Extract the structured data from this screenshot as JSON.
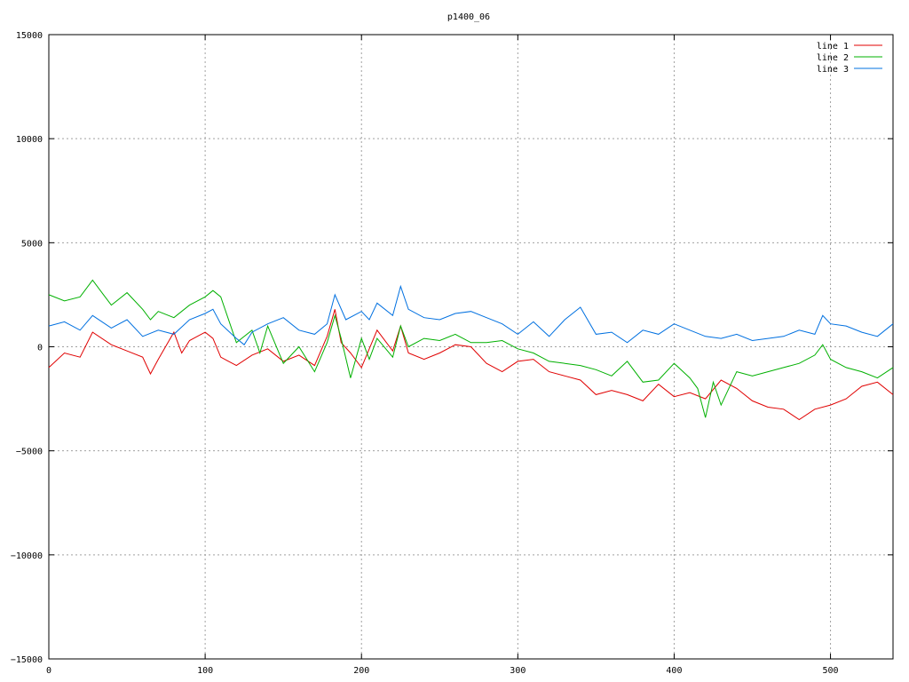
{
  "chart_data": {
    "type": "line",
    "title": "p1400_06",
    "xlabel": "",
    "ylabel": "",
    "xlim": [
      0,
      540
    ],
    "ylim": [
      -15000,
      15000
    ],
    "x_ticks": [
      0,
      100,
      200,
      300,
      400,
      500
    ],
    "y_ticks": [
      -15000,
      -10000,
      -5000,
      0,
      5000,
      10000,
      15000
    ],
    "grid": true,
    "legend_position": "top-right",
    "series": [
      {
        "name": "line 1",
        "color": "#e00000",
        "x": [
          0,
          10,
          20,
          28,
          40,
          50,
          60,
          65,
          70,
          80,
          85,
          90,
          100,
          105,
          110,
          120,
          130,
          140,
          150,
          160,
          170,
          178,
          183,
          187,
          193,
          200,
          205,
          210,
          220,
          225,
          230,
          240,
          250,
          260,
          270,
          280,
          290,
          300,
          310,
          320,
          330,
          340,
          350,
          360,
          370,
          380,
          390,
          400,
          410,
          420,
          430,
          440,
          450,
          460,
          470,
          480,
          490,
          500,
          510,
          520,
          530,
          540
        ],
        "y": [
          -1000,
          -300,
          -500,
          700,
          100,
          -200,
          -500,
          -1300,
          -600,
          700,
          -300,
          300,
          700,
          400,
          -500,
          -900,
          -400,
          -100,
          -700,
          -400,
          -900,
          500,
          1800,
          200,
          -300,
          -1000,
          -100,
          800,
          -200,
          1000,
          -300,
          -600,
          -300,
          100,
          0,
          -800,
          -1200,
          -700,
          -600,
          -1200,
          -1400,
          -1600,
          -2300,
          -2100,
          -2300,
          -2600,
          -1800,
          -2400,
          -2200,
          -2500,
          -1600,
          -2000,
          -2600,
          -2900,
          -3000,
          -3500,
          -3000,
          -2800,
          -2500,
          -1900,
          -1700,
          -2300
        ]
      },
      {
        "name": "line 2",
        "color": "#00b000",
        "x": [
          0,
          10,
          20,
          28,
          35,
          40,
          50,
          60,
          65,
          70,
          80,
          90,
          100,
          105,
          110,
          120,
          130,
          135,
          140,
          150,
          160,
          170,
          178,
          183,
          187,
          193,
          200,
          205,
          210,
          220,
          225,
          230,
          240,
          250,
          260,
          270,
          280,
          290,
          300,
          310,
          320,
          330,
          340,
          350,
          360,
          370,
          380,
          390,
          400,
          410,
          415,
          420,
          425,
          430,
          440,
          450,
          460,
          470,
          480,
          490,
          495,
          500,
          510,
          520,
          530,
          540
        ],
        "y": [
          2500,
          2200,
          2400,
          3200,
          2500,
          2000,
          2600,
          1800,
          1300,
          1700,
          1400,
          2000,
          2400,
          2700,
          2400,
          200,
          800,
          -300,
          1000,
          -800,
          0,
          -1200,
          200,
          1500,
          400,
          -1500,
          400,
          -600,
          400,
          -500,
          1000,
          0,
          400,
          300,
          600,
          200,
          200,
          300,
          -100,
          -300,
          -700,
          -800,
          -900,
          -1100,
          -1400,
          -700,
          -1700,
          -1600,
          -800,
          -1500,
          -2000,
          -3400,
          -1700,
          -2800,
          -1200,
          -1400,
          -1200,
          -1000,
          -800,
          -400,
          100,
          -600,
          -1000,
          -1200,
          -1500,
          -1000
        ]
      },
      {
        "name": "line 3",
        "color": "#0070e0",
        "x": [
          0,
          10,
          20,
          28,
          40,
          50,
          60,
          70,
          80,
          90,
          100,
          105,
          110,
          120,
          125,
          130,
          140,
          150,
          160,
          170,
          178,
          183,
          190,
          200,
          205,
          210,
          220,
          225,
          230,
          240,
          250,
          260,
          270,
          280,
          290,
          300,
          310,
          320,
          330,
          340,
          350,
          360,
          370,
          380,
          390,
          400,
          410,
          420,
          430,
          440,
          450,
          460,
          470,
          480,
          490,
          495,
          500,
          510,
          520,
          530,
          540
        ],
        "y": [
          1000,
          1200,
          800,
          1500,
          900,
          1300,
          500,
          800,
          600,
          1300,
          1600,
          1800,
          1100,
          400,
          100,
          700,
          1100,
          1400,
          800,
          600,
          1100,
          2500,
          1300,
          1700,
          1300,
          2100,
          1500,
          2900,
          1800,
          1400,
          1300,
          1600,
          1700,
          1400,
          1100,
          600,
          1200,
          500,
          1300,
          1900,
          600,
          700,
          200,
          800,
          600,
          1100,
          800,
          500,
          400,
          600,
          300,
          400,
          500,
          800,
          600,
          1500,
          1100,
          1000,
          700,
          500,
          1100
        ]
      }
    ]
  }
}
